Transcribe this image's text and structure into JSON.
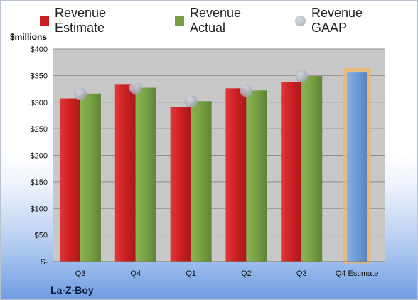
{
  "legend": {
    "estimate": "Revenue Estimate",
    "actual": "Revenue Actual",
    "gaap": "Revenue GAAP"
  },
  "y_unit": "$millions",
  "company": "La-Z-Boy",
  "colors": {
    "estimate": "#cc1f22",
    "actual": "#77a043",
    "gaap": "#b4b9c6",
    "forecast": "#6f9bd6",
    "forecast_glow": "#f6b35c",
    "plot_bg": "#c8c8c8"
  },
  "chart_data": {
    "type": "bar",
    "categories": [
      "Q3",
      "Q4",
      "Q1",
      "Q2",
      "Q3",
      "Q4 Estimate"
    ],
    "series": [
      {
        "name": "Revenue Estimate",
        "values": [
          307,
          334,
          291,
          326,
          338,
          null
        ]
      },
      {
        "name": "Revenue Actual",
        "values": [
          316,
          327,
          302,
          322,
          349,
          null
        ]
      },
      {
        "name": "Revenue GAAP",
        "values": [
          316,
          327,
          302,
          322,
          349,
          null
        ]
      }
    ],
    "forecast": {
      "category": "Q4 Estimate",
      "value": 357
    },
    "ylim": [
      0,
      400
    ],
    "yticks": [
      0,
      50,
      100,
      150,
      200,
      250,
      300,
      350,
      400
    ],
    "ytick_labels": [
      "$-",
      "$50",
      "$100",
      "$150",
      "$200",
      "$250",
      "$300",
      "$350",
      "$400"
    ],
    "grid": true
  }
}
